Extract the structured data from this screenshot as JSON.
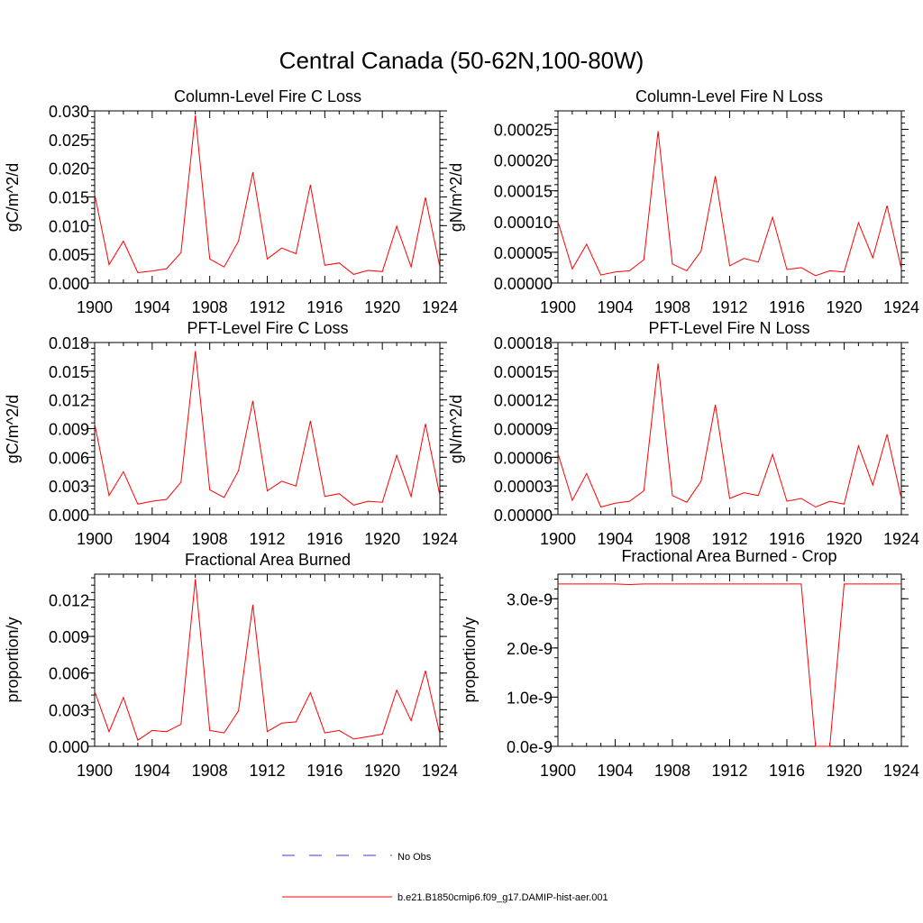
{
  "figure_title": "Central Canada (50-62N,100-80W)",
  "legend": {
    "entries": [
      {
        "label": "No Obs",
        "color": "#3a3ad0",
        "dash": true
      },
      {
        "label": "b.e21.B1850cmip6.f09_g17.DAMIP-hist-aer.001",
        "color": "#ff0000",
        "dash": false
      }
    ]
  },
  "chart_data": [
    {
      "type": "line",
      "title": "Column-Level Fire C Loss",
      "xlabel": "",
      "ylabel": "gC/m^2/d",
      "xlim": [
        1900,
        1924
      ],
      "ylim": [
        0,
        0.03
      ],
      "x_ticks": [
        1900,
        1904,
        1908,
        1912,
        1916,
        1920,
        1924
      ],
      "y_ticks": [
        "0.000",
        "0.005",
        "0.010",
        "0.015",
        "0.020",
        "0.025",
        "0.030"
      ],
      "grid": false,
      "x": [
        1900,
        1901,
        1902,
        1903,
        1904,
        1905,
        1906,
        1907,
        1908,
        1909,
        1910,
        1911,
        1912,
        1913,
        1914,
        1915,
        1916,
        1917,
        1918,
        1919,
        1920,
        1921,
        1922,
        1923,
        1924
      ],
      "series": [
        {
          "color": "#ff0000",
          "values": [
            0.0155,
            0.0032,
            0.0073,
            0.0018,
            0.0021,
            0.0025,
            0.0053,
            0.0292,
            0.0042,
            0.0028,
            0.0073,
            0.0193,
            0.0042,
            0.0061,
            0.0051,
            0.0171,
            0.0031,
            0.0035,
            0.0015,
            0.0022,
            0.002,
            0.0099,
            0.0028,
            0.0149,
            0.0028
          ]
        }
      ]
    },
    {
      "type": "line",
      "title": "Column-Level Fire N Loss",
      "xlabel": "",
      "ylabel": "gN/m^2/d",
      "xlim": [
        1900,
        1924
      ],
      "ylim": [
        0,
        0.00028
      ],
      "x_ticks": [
        1900,
        1904,
        1908,
        1912,
        1916,
        1920,
        1924
      ],
      "y_ticks": [
        "0.00000",
        "0.00005",
        "0.00010",
        "0.00015",
        "0.00020",
        "0.00025"
      ],
      "grid": false,
      "x": [
        1900,
        1901,
        1902,
        1903,
        1904,
        1905,
        1906,
        1907,
        1908,
        1909,
        1910,
        1911,
        1912,
        1913,
        1914,
        1915,
        1916,
        1917,
        1918,
        1919,
        1920,
        1921,
        1922,
        1923,
        1924
      ],
      "series": [
        {
          "color": "#ff0000",
          "values": [
            0.0001,
            2.3e-05,
            6.3e-05,
            1.3e-05,
            1.8e-05,
            2e-05,
            3.8e-05,
            0.000247,
            3.1e-05,
            2e-05,
            5.2e-05,
            0.000174,
            2.8e-05,
            4e-05,
            3.4e-05,
            0.000107,
            2.2e-05,
            2.5e-05,
            1.2e-05,
            2e-05,
            1.8e-05,
            9.8e-05,
            4.1e-05,
            0.000126,
            2.3e-05
          ]
        }
      ]
    },
    {
      "type": "line",
      "title": "PFT-Level Fire C Loss",
      "xlabel": "",
      "ylabel": "gC/m^2/d",
      "xlim": [
        1900,
        1924
      ],
      "ylim": [
        0,
        0.018
      ],
      "x_ticks": [
        1900,
        1904,
        1908,
        1912,
        1916,
        1920,
        1924
      ],
      "y_ticks": [
        "0.000",
        "0.003",
        "0.006",
        "0.009",
        "0.012",
        "0.015",
        "0.018"
      ],
      "grid": false,
      "x": [
        1900,
        1901,
        1902,
        1903,
        1904,
        1905,
        1906,
        1907,
        1908,
        1909,
        1910,
        1911,
        1912,
        1913,
        1914,
        1915,
        1916,
        1917,
        1918,
        1919,
        1920,
        1921,
        1922,
        1923,
        1924
      ],
      "series": [
        {
          "color": "#ff0000",
          "values": [
            0.0095,
            0.002,
            0.0045,
            0.0011,
            0.0014,
            0.0016,
            0.0034,
            0.0171,
            0.0026,
            0.0018,
            0.0046,
            0.0119,
            0.0025,
            0.0035,
            0.003,
            0.0098,
            0.0019,
            0.0022,
            0.001,
            0.0014,
            0.0013,
            0.0062,
            0.0019,
            0.0095,
            0.002
          ]
        }
      ]
    },
    {
      "type": "line",
      "title": "PFT-Level Fire N Loss",
      "xlabel": "",
      "ylabel": "gN/m^2/d",
      "xlim": [
        1900,
        1924
      ],
      "ylim": [
        0,
        0.00018
      ],
      "x_ticks": [
        1900,
        1904,
        1908,
        1912,
        1916,
        1920,
        1924
      ],
      "y_ticks": [
        "0.00000",
        "0.00003",
        "0.00006",
        "0.00009",
        "0.00012",
        "0.00015",
        "0.00018"
      ],
      "grid": false,
      "x": [
        1900,
        1901,
        1902,
        1903,
        1904,
        1905,
        1906,
        1907,
        1908,
        1909,
        1910,
        1911,
        1912,
        1913,
        1914,
        1915,
        1916,
        1917,
        1918,
        1919,
        1920,
        1921,
        1922,
        1923,
        1924
      ],
      "series": [
        {
          "color": "#ff0000",
          "values": [
            6.4e-05,
            1.5e-05,
            4.3e-05,
            8e-06,
            1.2e-05,
            1.4e-05,
            2.5e-05,
            0.000158,
            2e-05,
            1.3e-05,
            3.5e-05,
            0.000115,
            1.7e-05,
            2.3e-05,
            2e-05,
            6.3e-05,
            1.4e-05,
            1.7e-05,
            8e-06,
            1.4e-05,
            1.1e-05,
            7.2e-05,
            3.1e-05,
            8.4e-05,
            1.7e-05
          ]
        }
      ]
    },
    {
      "type": "line",
      "title": "Fractional Area Burned",
      "xlabel": "",
      "ylabel": "proportion/y",
      "xlim": [
        1900,
        1924
      ],
      "ylim": [
        0,
        0.0141
      ],
      "x_ticks": [
        1900,
        1904,
        1908,
        1912,
        1916,
        1920,
        1924
      ],
      "y_ticks": [
        "0.000",
        "0.003",
        "0.006",
        "0.009",
        "0.012"
      ],
      "grid": false,
      "x": [
        1900,
        1901,
        1902,
        1903,
        1904,
        1905,
        1906,
        1907,
        1908,
        1909,
        1910,
        1911,
        1912,
        1913,
        1914,
        1915,
        1916,
        1917,
        1918,
        1919,
        1920,
        1921,
        1922,
        1923,
        1924
      ],
      "series": [
        {
          "color": "#ff0000",
          "values": [
            0.0045,
            0.0012,
            0.004,
            0.0005,
            0.0013,
            0.0012,
            0.0018,
            0.0137,
            0.0013,
            0.0011,
            0.0029,
            0.0116,
            0.0012,
            0.0019,
            0.002,
            0.0044,
            0.0011,
            0.0013,
            0.0006,
            0.0008,
            0.001,
            0.0046,
            0.0021,
            0.0062,
            0.001
          ]
        }
      ]
    },
    {
      "type": "line",
      "title": "Fractional Area Burned - Crop",
      "xlabel": "",
      "ylabel": "proportion/y",
      "xlim": [
        1900,
        1924
      ],
      "ylim": [
        0,
        3.5e-09
      ],
      "x_ticks": [
        1900,
        1904,
        1908,
        1912,
        1916,
        1920,
        1924
      ],
      "y_ticks": [
        "0.0e-9",
        "1.0e-9",
        "2.0e-9",
        "3.0e-9"
      ],
      "grid": false,
      "x": [
        1900,
        1901,
        1902,
        1903,
        1904,
        1905,
        1906,
        1907,
        1908,
        1909,
        1910,
        1911,
        1912,
        1913,
        1914,
        1915,
        1916,
        1917,
        1918,
        1919,
        1920,
        1921,
        1922,
        1923,
        1924
      ],
      "series": [
        {
          "color": "#ff0000",
          "values": [
            3.3e-09,
            3.3e-09,
            3.3e-09,
            3.3e-09,
            3.3e-09,
            3.29e-09,
            3.3e-09,
            3.3e-09,
            3.3e-09,
            3.3e-09,
            3.3e-09,
            3.3e-09,
            3.3e-09,
            3.3e-09,
            3.3e-09,
            3.3e-09,
            3.3e-09,
            3.3e-09,
            0,
            0,
            3.3e-09,
            3.3e-09,
            3.3e-09,
            3.3e-09,
            3.3e-09
          ]
        }
      ]
    }
  ]
}
